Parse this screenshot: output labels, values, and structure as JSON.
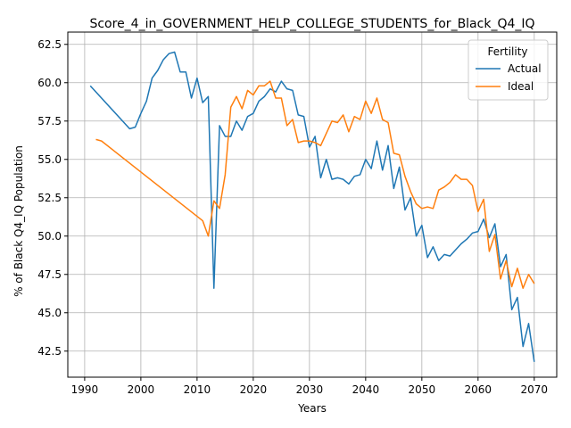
{
  "chart_data": {
    "type": "line",
    "title": "Score_4_in_GOVERNMENT_HELP_COLLEGE_STUDENTS_for_Black_Q4_IQ",
    "xlabel": "Years",
    "ylabel": "% of Black Q4_IQ Population",
    "xlim": [
      1987,
      2074
    ],
    "ylim": [
      40.8,
      63.3
    ],
    "xticks": [
      1990,
      2000,
      2010,
      2020,
      2030,
      2040,
      2050,
      2060,
      2070
    ],
    "yticks": [
      42.5,
      45.0,
      47.5,
      50.0,
      52.5,
      55.0,
      57.5,
      60.0,
      62.5
    ],
    "grid": true,
    "legend": {
      "title": "Fertility",
      "placement": "top-right"
    },
    "colors": {
      "Actual": "#1f77b4",
      "Ideal": "#ff7f0e"
    },
    "series": [
      {
        "name": "Actual",
        "points": [
          [
            1991,
            59.8
          ],
          [
            1998,
            57.0
          ],
          [
            1999,
            57.1
          ],
          [
            2000,
            58.0
          ],
          [
            2001,
            58.8
          ],
          [
            2002,
            60.3
          ],
          [
            2003,
            60.8
          ],
          [
            2004,
            61.5
          ],
          [
            2005,
            61.9
          ],
          [
            2006,
            62.0
          ],
          [
            2007,
            60.7
          ],
          [
            2008,
            60.7
          ],
          [
            2009,
            59.0
          ],
          [
            2010,
            60.3
          ],
          [
            2011,
            58.7
          ],
          [
            2012,
            59.1
          ],
          [
            2013,
            46.6
          ],
          [
            2014,
            57.2
          ],
          [
            2015,
            56.5
          ],
          [
            2016,
            56.5
          ],
          [
            2017,
            57.5
          ],
          [
            2018,
            56.9
          ],
          [
            2019,
            57.8
          ],
          [
            2020,
            58.0
          ],
          [
            2021,
            58.8
          ],
          [
            2022,
            59.1
          ],
          [
            2023,
            59.6
          ],
          [
            2024,
            59.4
          ],
          [
            2025,
            60.1
          ],
          [
            2026,
            59.6
          ],
          [
            2027,
            59.5
          ],
          [
            2028,
            57.9
          ],
          [
            2029,
            57.8
          ],
          [
            2030,
            55.8
          ],
          [
            2031,
            56.5
          ],
          [
            2032,
            53.8
          ],
          [
            2033,
            55.0
          ],
          [
            2034,
            53.7
          ],
          [
            2035,
            53.8
          ],
          [
            2036,
            53.7
          ],
          [
            2037,
            53.4
          ],
          [
            2038,
            53.9
          ],
          [
            2039,
            54.0
          ],
          [
            2040,
            55.0
          ],
          [
            2041,
            54.4
          ],
          [
            2042,
            56.2
          ],
          [
            2043,
            54.3
          ],
          [
            2044,
            55.9
          ],
          [
            2045,
            53.1
          ],
          [
            2046,
            54.5
          ],
          [
            2047,
            51.7
          ],
          [
            2048,
            52.5
          ],
          [
            2049,
            50.0
          ],
          [
            2050,
            50.7
          ],
          [
            2051,
            48.6
          ],
          [
            2052,
            49.3
          ],
          [
            2053,
            48.4
          ],
          [
            2054,
            48.8
          ],
          [
            2055,
            48.7
          ],
          [
            2056,
            49.1
          ],
          [
            2057,
            49.5
          ],
          [
            2058,
            49.8
          ],
          [
            2059,
            50.2
          ],
          [
            2060,
            50.3
          ],
          [
            2061,
            51.1
          ],
          [
            2062,
            49.9
          ],
          [
            2063,
            50.8
          ],
          [
            2064,
            48.0
          ],
          [
            2065,
            48.8
          ],
          [
            2066,
            45.2
          ],
          [
            2067,
            46.0
          ],
          [
            2068,
            42.8
          ],
          [
            2069,
            44.3
          ],
          [
            2070,
            41.8
          ]
        ]
      },
      {
        "name": "Ideal",
        "points": [
          [
            1992,
            56.3
          ],
          [
            1993,
            56.2
          ],
          [
            2011,
            51.0
          ],
          [
            2012,
            50.0
          ],
          [
            2013,
            52.3
          ],
          [
            2014,
            51.8
          ],
          [
            2015,
            54.0
          ],
          [
            2016,
            58.4
          ],
          [
            2017,
            59.1
          ],
          [
            2018,
            58.3
          ],
          [
            2019,
            59.5
          ],
          [
            2020,
            59.2
          ],
          [
            2021,
            59.8
          ],
          [
            2022,
            59.8
          ],
          [
            2023,
            60.1
          ],
          [
            2024,
            59.0
          ],
          [
            2025,
            59.0
          ],
          [
            2026,
            57.2
          ],
          [
            2027,
            57.6
          ],
          [
            2028,
            56.1
          ],
          [
            2029,
            56.2
          ],
          [
            2030,
            56.2
          ],
          [
            2031,
            56.1
          ],
          [
            2032,
            55.9
          ],
          [
            2033,
            56.7
          ],
          [
            2034,
            57.5
          ],
          [
            2035,
            57.4
          ],
          [
            2036,
            57.9
          ],
          [
            2037,
            56.8
          ],
          [
            2038,
            57.8
          ],
          [
            2039,
            57.6
          ],
          [
            2040,
            58.8
          ],
          [
            2041,
            58.0
          ],
          [
            2042,
            59.0
          ],
          [
            2043,
            57.6
          ],
          [
            2044,
            57.4
          ],
          [
            2045,
            55.4
          ],
          [
            2046,
            55.3
          ],
          [
            2047,
            53.9
          ],
          [
            2048,
            52.9
          ],
          [
            2049,
            52.1
          ],
          [
            2050,
            51.8
          ],
          [
            2051,
            51.9
          ],
          [
            2052,
            51.8
          ],
          [
            2053,
            53.0
          ],
          [
            2054,
            53.2
          ],
          [
            2055,
            53.5
          ],
          [
            2056,
            54.0
          ],
          [
            2057,
            53.7
          ],
          [
            2058,
            53.7
          ],
          [
            2059,
            53.3
          ],
          [
            2060,
            51.6
          ],
          [
            2061,
            52.4
          ],
          [
            2062,
            49.0
          ],
          [
            2063,
            50.1
          ],
          [
            2064,
            47.2
          ],
          [
            2065,
            48.4
          ],
          [
            2066,
            46.7
          ],
          [
            2067,
            47.9
          ],
          [
            2068,
            46.6
          ],
          [
            2069,
            47.5
          ],
          [
            2070,
            46.9
          ]
        ]
      }
    ]
  }
}
